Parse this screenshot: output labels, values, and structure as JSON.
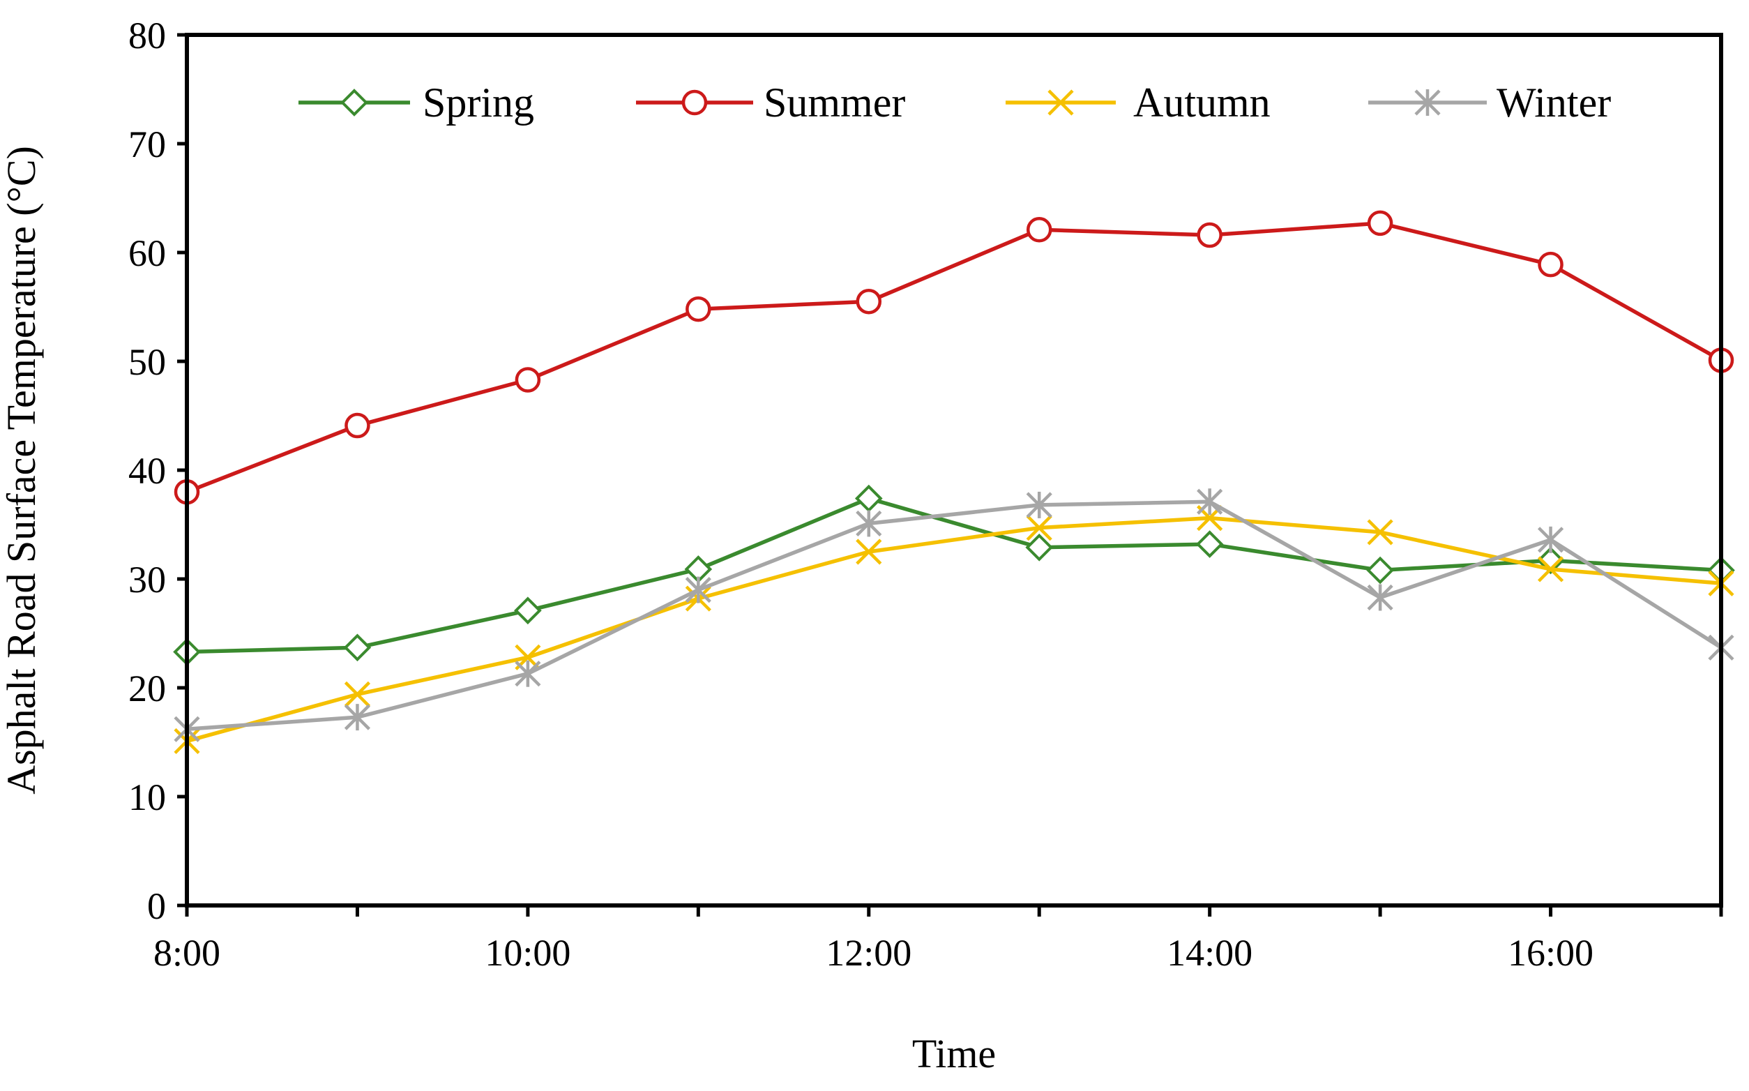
{
  "chart_data": {
    "type": "line",
    "title": "",
    "xlabel": "Time",
    "ylabel": "Asphalt Road Surface Temperature (°C)",
    "x": [
      "8:00",
      "9:00",
      "10:00",
      "11:00",
      "12:00",
      "13:00",
      "14:00",
      "15:00",
      "16:00",
      "17:00"
    ],
    "x_tick_labels": [
      "8:00",
      "10:00",
      "12:00",
      "14:00",
      "16:00"
    ],
    "x_tick_label_indices": [
      0,
      2,
      4,
      6,
      8
    ],
    "ylim": [
      0,
      80
    ],
    "yticks": [
      0,
      10,
      20,
      30,
      40,
      50,
      60,
      70,
      80
    ],
    "grid": false,
    "legend_position": "top",
    "series": [
      {
        "name": "Spring",
        "color": "#3a8a2e",
        "marker": "diamond",
        "values": [
          23.3,
          23.7,
          27.1,
          30.9,
          37.4,
          32.9,
          33.2,
          30.8,
          31.7,
          30.8
        ]
      },
      {
        "name": "Summer",
        "color": "#cc1a1a",
        "marker": "circle",
        "values": [
          38.0,
          44.1,
          48.3,
          54.8,
          55.5,
          62.1,
          61.6,
          62.7,
          58.9,
          50.1
        ]
      },
      {
        "name": "Autumn",
        "color": "#f5c000",
        "marker": "x",
        "values": [
          15.1,
          19.4,
          22.8,
          28.2,
          32.5,
          34.7,
          35.6,
          34.3,
          30.9,
          29.6
        ]
      },
      {
        "name": "Winter",
        "color": "#a6a6a6",
        "marker": "asterisk",
        "values": [
          16.2,
          17.3,
          21.3,
          29.0,
          35.1,
          36.8,
          37.1,
          28.3,
          33.6,
          23.7
        ]
      }
    ]
  }
}
